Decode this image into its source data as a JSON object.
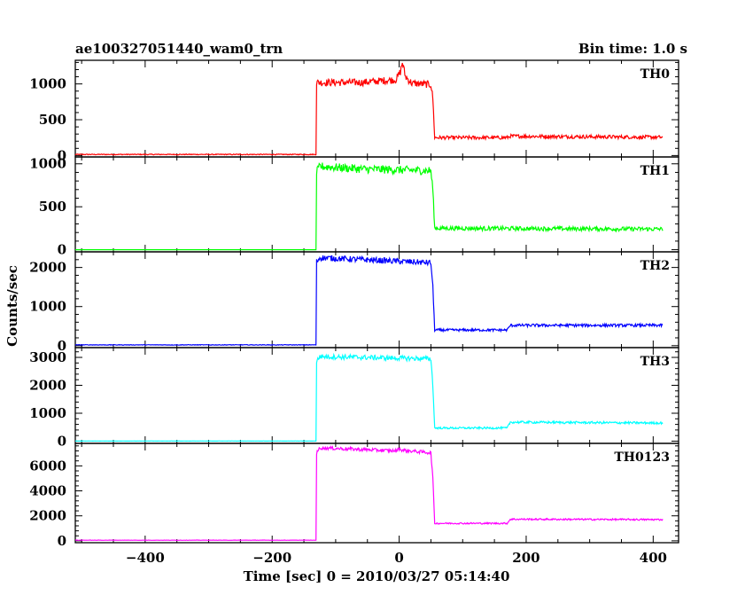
{
  "header": {
    "title": "ae100327051440_wam0_trn",
    "bin_time": "Bin time: 1.0 s"
  },
  "chart_data": {
    "type": "line",
    "xlabel": "Time [sec] 0 = 2010/03/27 05:14:40",
    "ylabel": "Counts/sec",
    "xlim": [
      -510,
      440
    ],
    "xticks": [
      -400,
      -200,
      0,
      200,
      400
    ],
    "series": [
      {
        "name": "TH0",
        "color": "#ff0000",
        "ylim": [
          -20,
          1330
        ],
        "yticks": [
          0,
          500,
          1000
        ],
        "x": [
          -510,
          -131,
          -130,
          -60,
          -5,
          2,
          5,
          10,
          20,
          50,
          53,
          56,
          170,
          175,
          415
        ],
        "values": [
          15,
          15,
          1020,
          1020,
          1060,
          1170,
          1300,
          1100,
          1010,
          990,
          800,
          250,
          250,
          270,
          255
        ]
      },
      {
        "name": "TH1",
        "color": "#00ff00",
        "ylim": [
          -25,
          1080
        ],
        "yticks": [
          0,
          500,
          1000
        ],
        "x": [
          -510,
          -131,
          -130,
          -125,
          -60,
          50,
          53,
          56,
          415
        ],
        "values": [
          0,
          0,
          900,
          970,
          940,
          920,
          700,
          250,
          240
        ]
      },
      {
        "name": "TH2",
        "color": "#0000ff",
        "ylim": [
          -50,
          2400
        ],
        "yticks": [
          0,
          1000,
          2000
        ],
        "x": [
          -510,
          -131,
          -130,
          -125,
          50,
          53,
          56,
          170,
          175,
          415
        ],
        "values": [
          20,
          20,
          2150,
          2250,
          2120,
          1500,
          400,
          400,
          520,
          520
        ]
      },
      {
        "name": "TH3",
        "color": "#00ffff",
        "ylim": [
          -80,
          3350
        ],
        "yticks": [
          0,
          1000,
          2000,
          3000
        ],
        "x": [
          -510,
          -131,
          -130,
          -125,
          50,
          53,
          56,
          170,
          175,
          415
        ],
        "values": [
          5,
          5,
          2850,
          3030,
          2950,
          2000,
          470,
          470,
          680,
          650
        ]
      },
      {
        "name": "TH0123",
        "color": "#ff00ff",
        "ylim": [
          -150,
          7800
        ],
        "yticks": [
          0,
          2000,
          4000,
          6000
        ],
        "x": [
          -510,
          -131,
          -130,
          -125,
          -5,
          0,
          5,
          50,
          53,
          56,
          170,
          175,
          415
        ],
        "values": [
          50,
          50,
          7000,
          7450,
          7200,
          7380,
          7250,
          7050,
          5000,
          1400,
          1400,
          1730,
          1700
        ]
      }
    ]
  }
}
